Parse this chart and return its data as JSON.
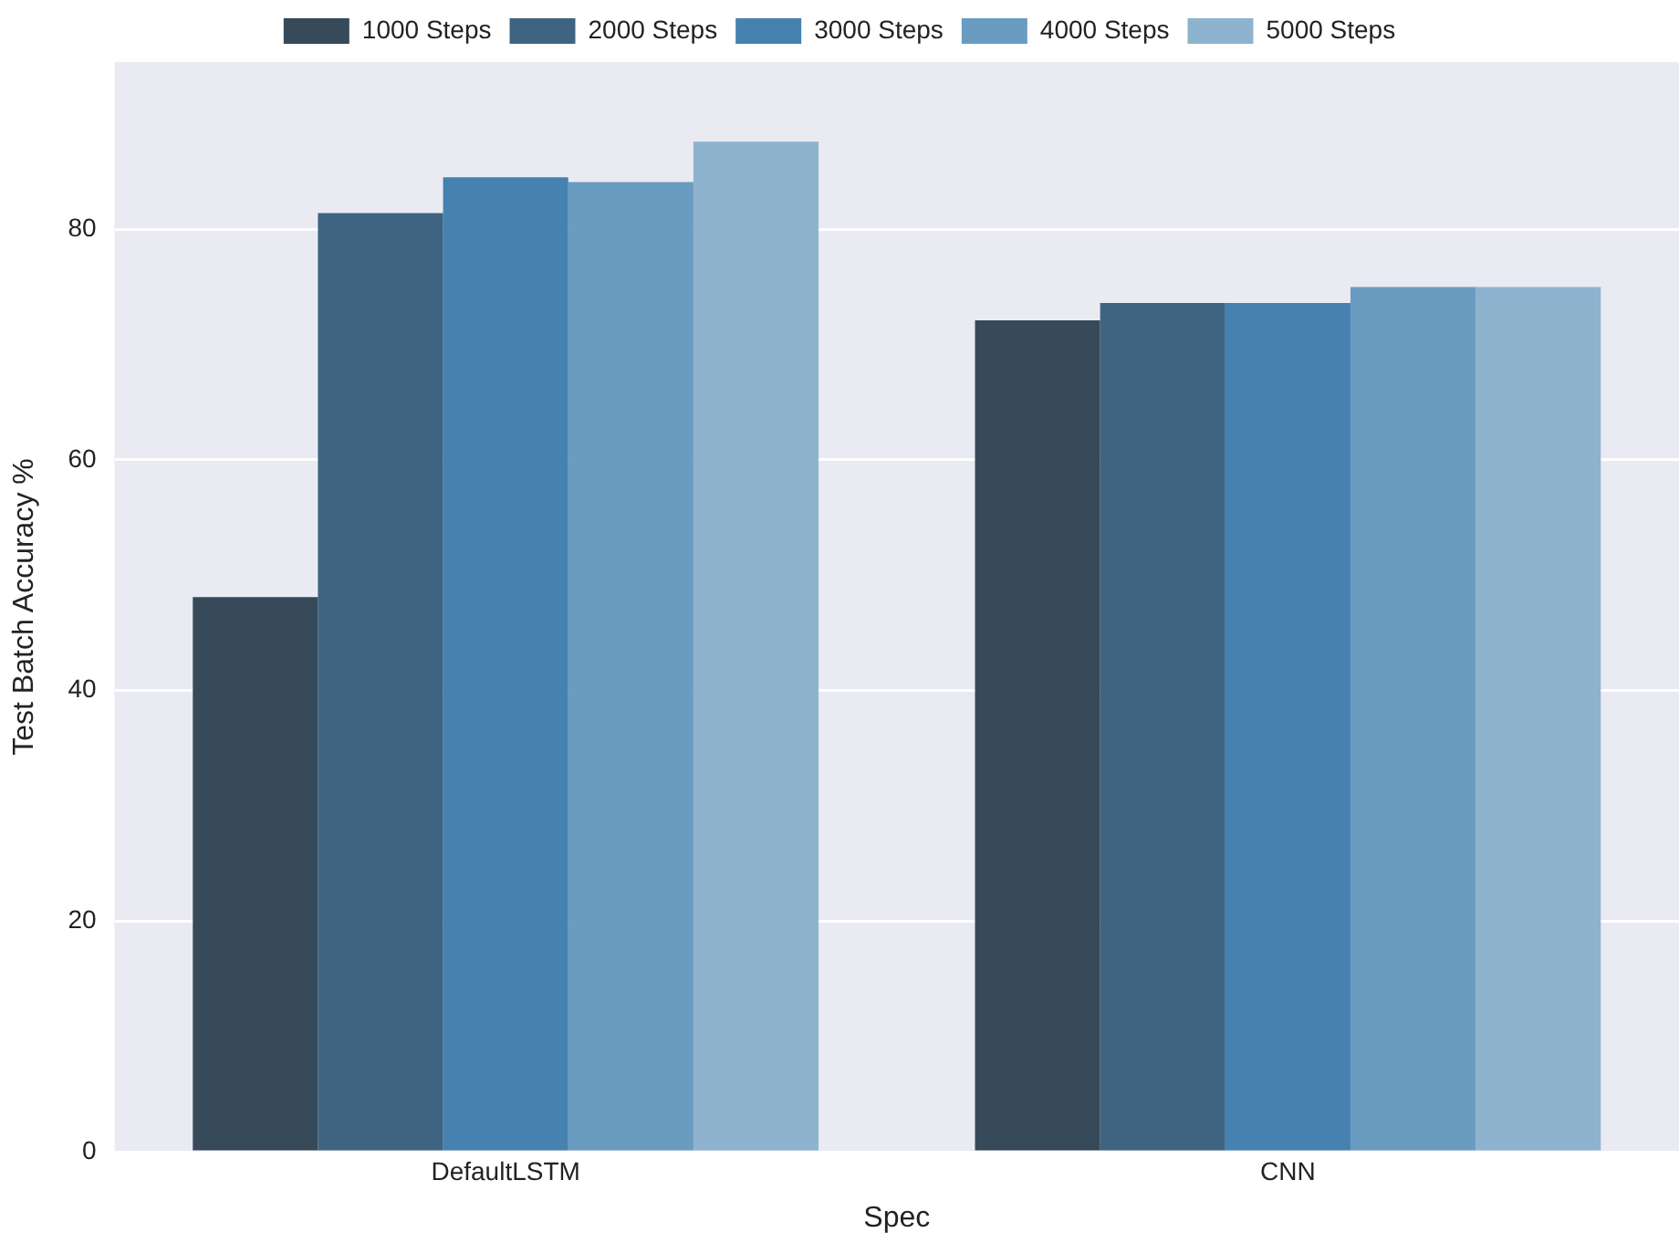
{
  "chart_data": {
    "type": "bar",
    "xlabel": "Spec",
    "ylabel": "Test Batch Accuracy %",
    "categories": [
      "DefaultLSTM",
      "CNN"
    ],
    "series": [
      {
        "name": "1000 Steps",
        "color": "#374a5a",
        "values": [
          48.1,
          72.1
        ]
      },
      {
        "name": "2000 Steps",
        "color": "#3f6482",
        "values": [
          81.4,
          73.6
        ]
      },
      {
        "name": "3000 Steps",
        "color": "#4682b0",
        "values": [
          84.5,
          73.6
        ]
      },
      {
        "name": "4000 Steps",
        "color": "#699cc0",
        "values": [
          84.1,
          75.0
        ]
      },
      {
        "name": "5000 Steps",
        "color": "#8db3cf",
        "values": [
          87.6,
          75.0
        ]
      }
    ],
    "ylim": [
      0,
      94.5
    ],
    "yticks": [
      0,
      20,
      40,
      60,
      80
    ],
    "grid": "y",
    "legend": "top"
  }
}
